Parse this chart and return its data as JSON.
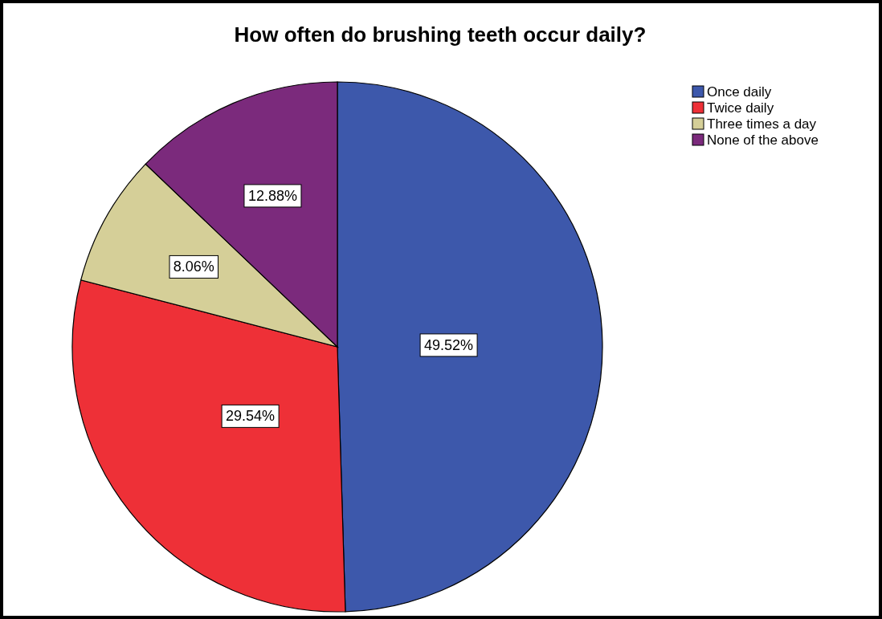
{
  "chart_data": {
    "type": "pie",
    "title": "How often do brushing teeth occur daily?",
    "categories": [
      "Once daily",
      "Twice daily",
      "Three times a day",
      "None of the above"
    ],
    "values": [
      49.52,
      29.54,
      8.06,
      12.88
    ],
    "colors": [
      "#3d58ab",
      "#ee3037",
      "#d5cf98",
      "#7b2a7c"
    ],
    "value_labels": [
      "49.52%",
      "29.54%",
      "8.06%",
      "12.88%"
    ],
    "legend": "top right"
  }
}
